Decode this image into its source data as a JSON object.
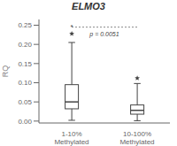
{
  "chart_data": {
    "type": "box",
    "title": "ELMO3",
    "ylabel": "RQ",
    "categories": [
      "1-10%\nMethylated",
      "10-100%\nMethylated"
    ],
    "boxes": [
      {
        "median": 0.05,
        "q1": 0.032,
        "q3": 0.095,
        "whislo": 0.002,
        "whishi": 0.205,
        "fliers": [
          0.228
        ]
      },
      {
        "median": 0.028,
        "q1": 0.018,
        "q3": 0.042,
        "whislo": 0.001,
        "whishi": 0.098,
        "fliers": [
          0.112
        ]
      }
    ],
    "color": "#444444",
    "marker": "star",
    "ylim": [
      -0.005,
      0.265
    ],
    "yticks": [
      {
        "value": 0,
        "label": "0.00"
      },
      0.05,
      {
        "value": 0.1,
        "label": "0.10"
      },
      0.15,
      {
        "value": 0.2,
        "label": "0.20"
      },
      0.25
    ],
    "grid": false,
    "annotations": [
      {
        "text": "p = 0.0051",
        "y": 0.245,
        "x": [
          "1-10%\nMethylated",
          "10-100%\nMethylated"
        ],
        "color": "#888888",
        "line_style": "dotted"
      },
      {
        "text": "*",
        "x": "1-10%\nMethylated",
        "y": 0.232
      }
    ]
  }
}
